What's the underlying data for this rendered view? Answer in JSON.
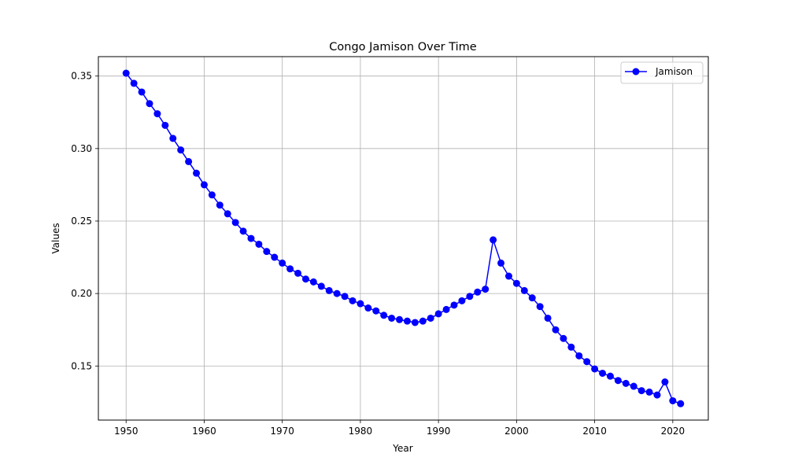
{
  "chart_data": {
    "type": "line",
    "title": "Congo Jamison Over Time",
    "xlabel": "Year",
    "ylabel": "Values",
    "xlim": [
      1946.45,
      2024.55
    ],
    "ylim": [
      0.1127,
      0.3634
    ],
    "xticks": [
      1950,
      1960,
      1970,
      1980,
      1990,
      2000,
      2010,
      2020
    ],
    "yticks": [
      0.15,
      0.2,
      0.25,
      0.3,
      0.35
    ],
    "ytick_labels": [
      "0.15",
      "0.20",
      "0.25",
      "0.30",
      "0.35"
    ],
    "grid": true,
    "legend_position": "top-right",
    "series": [
      {
        "name": "Jamison",
        "color": "#0000ff",
        "marker": "circle",
        "x": [
          1950,
          1951,
          1952,
          1953,
          1954,
          1955,
          1956,
          1957,
          1958,
          1959,
          1960,
          1961,
          1962,
          1963,
          1964,
          1965,
          1966,
          1967,
          1968,
          1969,
          1970,
          1971,
          1972,
          1973,
          1974,
          1975,
          1976,
          1977,
          1978,
          1979,
          1980,
          1981,
          1982,
          1983,
          1984,
          1985,
          1986,
          1987,
          1988,
          1989,
          1990,
          1991,
          1992,
          1993,
          1994,
          1995,
          1996,
          1997,
          1998,
          1999,
          2000,
          2001,
          2002,
          2003,
          2004,
          2005,
          2006,
          2007,
          2008,
          2009,
          2010,
          2011,
          2012,
          2013,
          2014,
          2015,
          2016,
          2017,
          2018,
          2019,
          2020,
          2021
        ],
        "values": [
          0.352,
          0.345,
          0.339,
          0.331,
          0.324,
          0.316,
          0.307,
          0.299,
          0.291,
          0.283,
          0.275,
          0.268,
          0.261,
          0.255,
          0.249,
          0.243,
          0.238,
          0.234,
          0.229,
          0.225,
          0.221,
          0.217,
          0.214,
          0.21,
          0.208,
          0.205,
          0.202,
          0.2,
          0.198,
          0.195,
          0.193,
          0.19,
          0.188,
          0.185,
          0.183,
          0.182,
          0.181,
          0.18,
          0.181,
          0.183,
          0.186,
          0.189,
          0.192,
          0.195,
          0.198,
          0.201,
          0.203,
          0.237,
          0.221,
          0.212,
          0.207,
          0.202,
          0.197,
          0.191,
          0.183,
          0.175,
          0.169,
          0.163,
          0.157,
          0.153,
          0.148,
          0.145,
          0.143,
          0.14,
          0.138,
          0.136,
          0.133,
          0.132,
          0.13,
          0.139,
          0.126,
          0.124
        ]
      }
    ]
  }
}
